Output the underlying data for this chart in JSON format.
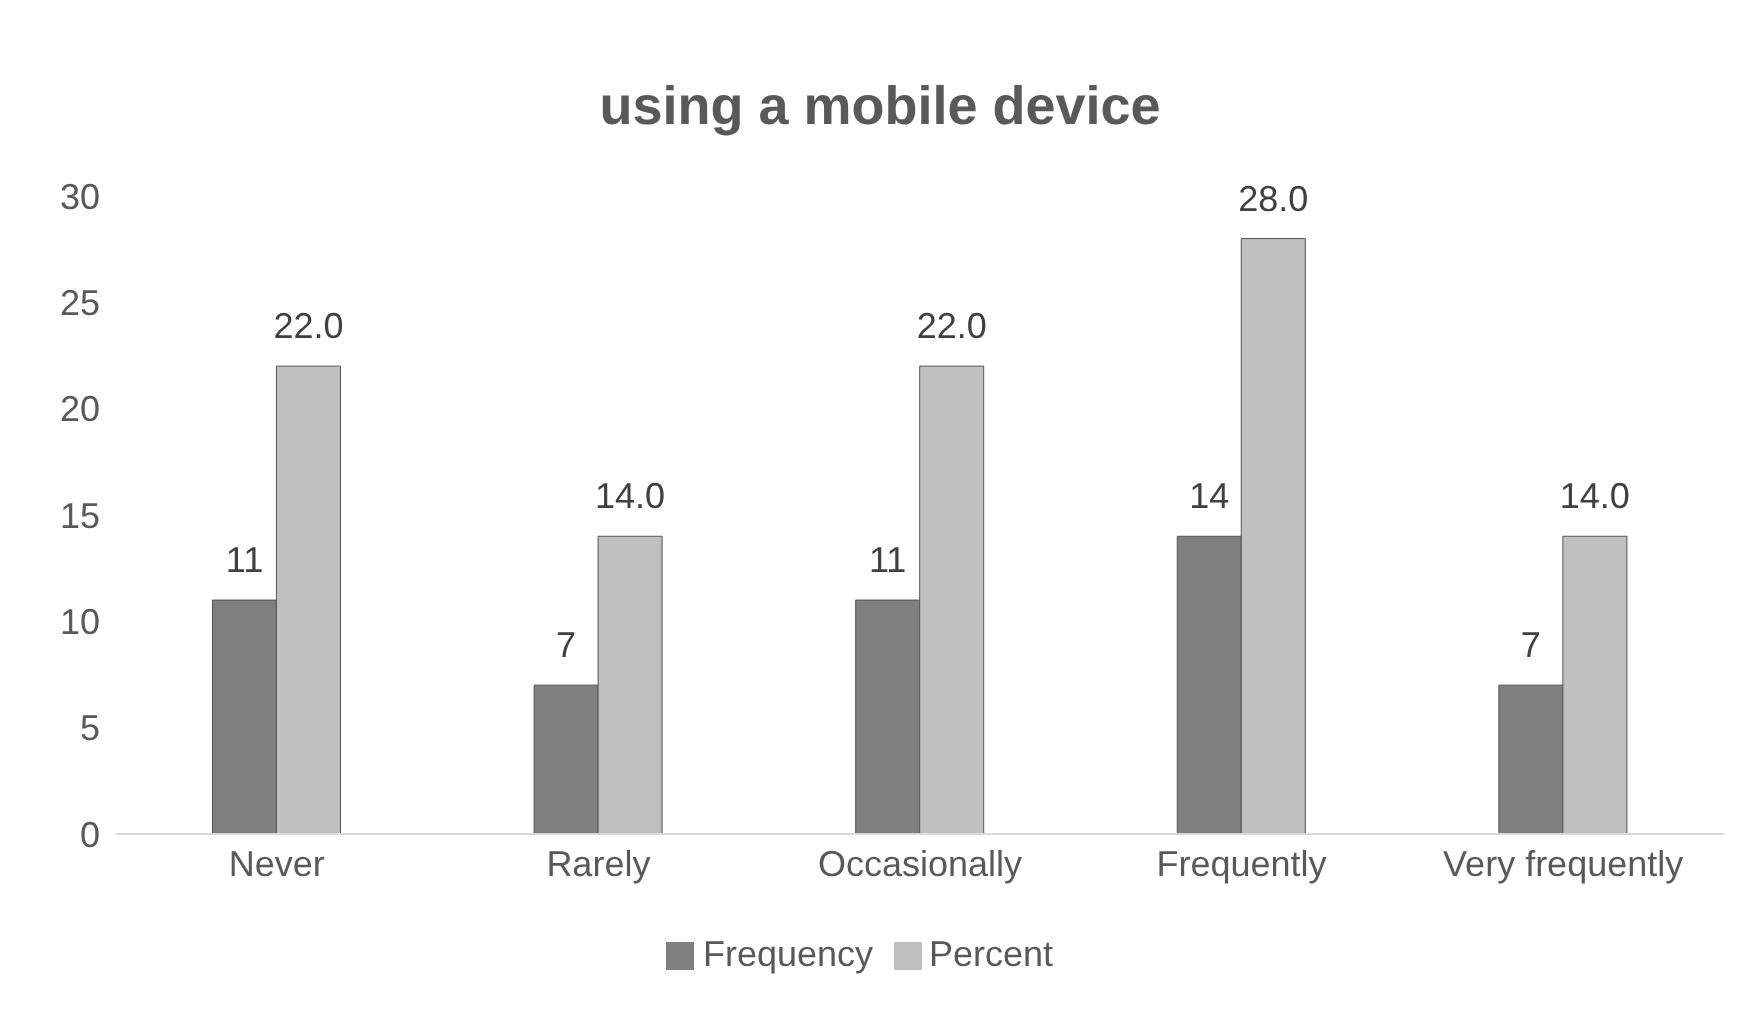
{
  "chart_data": {
    "type": "bar",
    "title": "using a mobile device",
    "categories": [
      "Never",
      "Rarely",
      "Occasionally",
      "Frequently",
      "Very frequently"
    ],
    "series": [
      {
        "name": "Frequency",
        "color": "#7f7f7f",
        "values": [
          11,
          7,
          11,
          14,
          7
        ],
        "value_labels": [
          "11",
          "7",
          "11",
          "14",
          "7"
        ]
      },
      {
        "name": "Percent",
        "color": "#c0c0c0",
        "values": [
          22,
          14,
          22,
          28,
          14
        ],
        "value_labels": [
          "22.0",
          "14.0",
          "22.0",
          "28.0",
          "14.0"
        ]
      }
    ],
    "ylim": [
      0,
      30
    ],
    "yticks": [
      0,
      5,
      10,
      15,
      20,
      25,
      30
    ],
    "grid": false,
    "legend": "bottom"
  }
}
